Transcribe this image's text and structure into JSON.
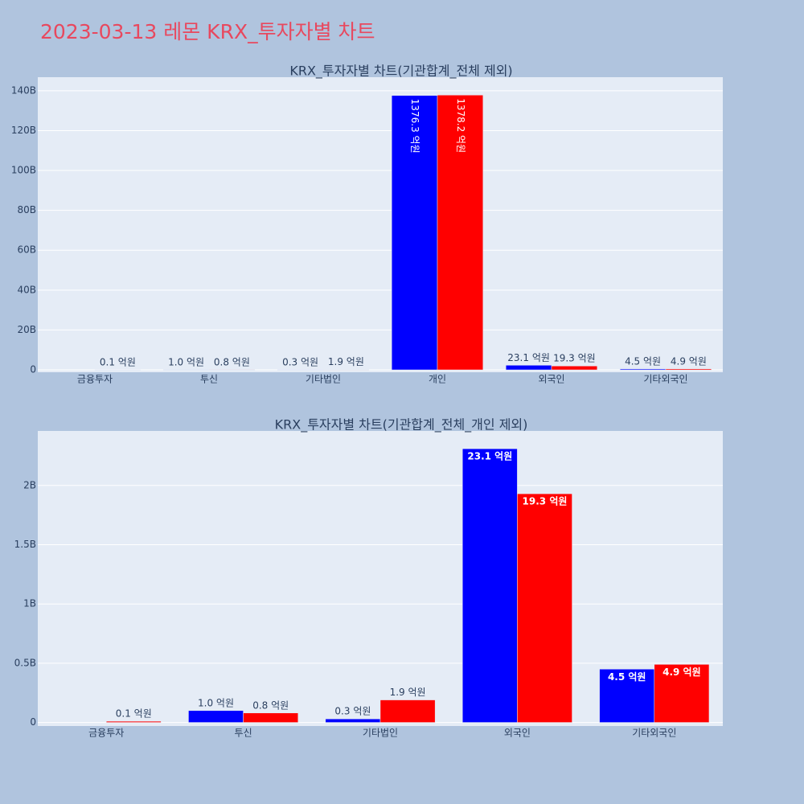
{
  "title": "2023-03-13 레몬 KRX_투자자별 차트",
  "chart_data": [
    {
      "type": "bar",
      "title": "KRX_투자자별 차트(기관합계_전체 제외)",
      "categories": [
        "금융투자",
        "투신",
        "기타법인",
        "개인",
        "외국인",
        "기타외국인"
      ],
      "series": [
        {
          "color": "#0000ff",
          "values": [
            null,
            0.1,
            0.03,
            137.63,
            2.31,
            0.45
          ],
          "value_labels": [
            null,
            "1.0 억원",
            "0.3 억원",
            "1376.3 억원",
            "23.1 억원",
            "4.5 억원"
          ]
        },
        {
          "color": "#ff0000",
          "values": [
            0.01,
            0.08,
            0.19,
            137.82,
            1.93,
            0.49
          ],
          "value_labels": [
            "0.1 억원",
            "0.8 억원",
            "1.9 억원",
            "1378.2 억원",
            "19.3 억원",
            "4.9 억원"
          ]
        }
      ],
      "ylim": [
        -1.2,
        146.8
      ],
      "yticks": [
        0,
        {
          "value": 20,
          "label": "20B"
        },
        {
          "value": 40,
          "label": "40B"
        },
        {
          "value": 60,
          "label": "60B"
        },
        {
          "value": 80,
          "label": "80B"
        },
        {
          "value": 100,
          "label": "100B"
        },
        {
          "value": 120,
          "label": "120B"
        },
        {
          "value": 140,
          "label": "140B"
        }
      ],
      "grid": true
    },
    {
      "type": "bar",
      "title": "KRX_투자자별 차트(기관합계_전체_개인 제외)",
      "categories": [
        "금융투자",
        "투신",
        "기타법인",
        "외국인",
        "기타외국인"
      ],
      "series": [
        {
          "color": "#0000ff",
          "values": [
            null,
            0.1,
            0.03,
            2.31,
            0.45
          ],
          "value_labels": [
            null,
            "1.0 억원",
            "0.3 억원",
            "23.1 억원",
            "4.5 억원"
          ]
        },
        {
          "color": "#ff0000",
          "values": [
            0.01,
            0.08,
            0.19,
            1.93,
            0.49
          ],
          "value_labels": [
            "0.1 억원",
            "0.8 억원",
            "1.9 억원",
            "19.3 억원",
            "4.9 억원"
          ]
        }
      ],
      "ylim": [
        -0.03,
        2.46
      ],
      "yticks": [
        0,
        {
          "value": 0.5,
          "label": "0.5B"
        },
        {
          "value": 1,
          "label": "1B"
        },
        {
          "value": 1.5,
          "label": "1.5B"
        },
        {
          "value": 2,
          "label": "2B"
        }
      ],
      "grid": true
    }
  ]
}
